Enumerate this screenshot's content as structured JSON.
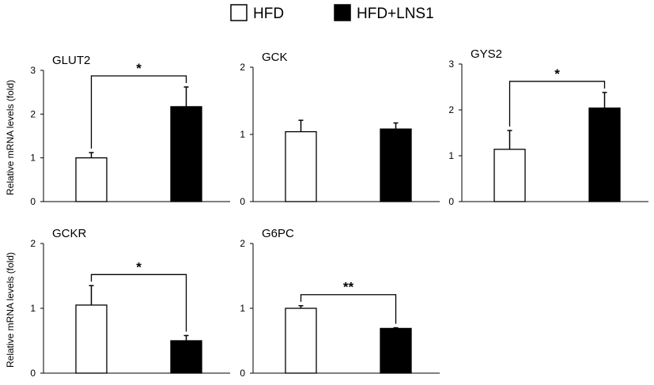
{
  "legend": {
    "items": [
      {
        "label": "HFD",
        "color": "#ffffff"
      },
      {
        "label": "HFD+LNS1",
        "color": "#000000"
      }
    ]
  },
  "ylabel": "Relative mRNA levels (fold)",
  "chart_data": [
    {
      "type": "bar",
      "title": "GLUT2",
      "categories": [
        "HFD",
        "HFD+LNS1"
      ],
      "values": [
        1.0,
        2.17
      ],
      "errors": [
        0.12,
        0.45
      ],
      "ylim": [
        0,
        3
      ],
      "yticks": [
        "0",
        "1",
        "2",
        "3"
      ],
      "significance": "*",
      "ylabel": "Relative mRNA levels (fold)"
    },
    {
      "type": "bar",
      "title": "GCK",
      "categories": [
        "HFD",
        "HFD+LNS1"
      ],
      "values": [
        1.04,
        1.08
      ],
      "errors": [
        0.17,
        0.09
      ],
      "ylim": [
        0,
        2
      ],
      "yticks": [
        "0",
        "1",
        "2"
      ],
      "significance": "",
      "ylabel": ""
    },
    {
      "type": "bar",
      "title": "GYS2",
      "categories": [
        "HFD",
        "HFD+LNS1"
      ],
      "values": [
        1.14,
        2.04
      ],
      "errors": [
        0.41,
        0.34
      ],
      "ylim": [
        0,
        3
      ],
      "yticks": [
        "0",
        "1",
        "2",
        "3"
      ],
      "significance": "*",
      "ylabel": ""
    },
    {
      "type": "bar",
      "title": "GCKR",
      "categories": [
        "HFD",
        "HFD+LNS1"
      ],
      "values": [
        1.05,
        0.5
      ],
      "errors": [
        0.3,
        0.08
      ],
      "ylim": [
        0,
        2
      ],
      "yticks": [
        "0",
        "1",
        "2"
      ],
      "significance": "*",
      "ylabel": "Relative mRNA levels (fold)"
    },
    {
      "type": "bar",
      "title": "G6PC",
      "categories": [
        "HFD",
        "HFD+LNS1"
      ],
      "values": [
        1.0,
        0.69
      ],
      "errors": [
        0.04,
        0.01
      ],
      "ylim": [
        0,
        2
      ],
      "yticks": [
        "0",
        "1",
        "2"
      ],
      "significance": "**",
      "ylabel": ""
    }
  ]
}
